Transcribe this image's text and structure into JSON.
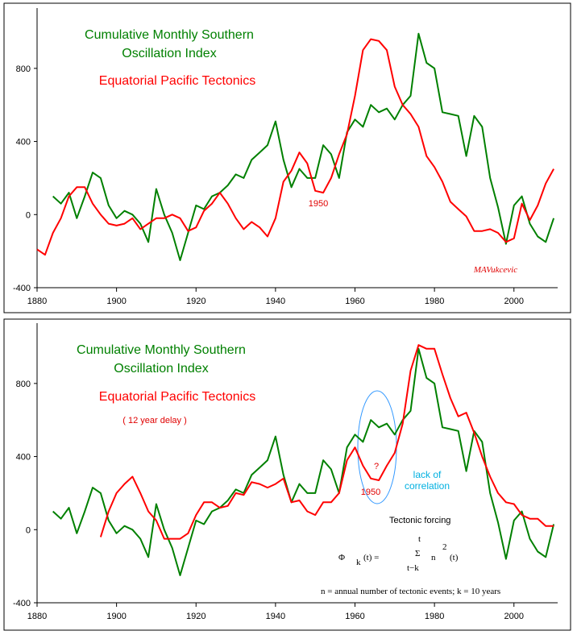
{
  "chart_data": [
    {
      "type": "line",
      "x": [
        1880,
        1882,
        1884,
        1886,
        1888,
        1890,
        1892,
        1894,
        1896,
        1898,
        1900,
        1902,
        1904,
        1906,
        1908,
        1910,
        1912,
        1914,
        1916,
        1918,
        1920,
        1922,
        1924,
        1926,
        1928,
        1930,
        1932,
        1934,
        1936,
        1938,
        1940,
        1942,
        1944,
        1946,
        1948,
        1950,
        1952,
        1954,
        1956,
        1958,
        1960,
        1962,
        1964,
        1966,
        1968,
        1970,
        1972,
        1974,
        1976,
        1978,
        1980,
        1982,
        1984,
        1986,
        1988,
        1990,
        1992,
        1994,
        1996,
        1998,
        2000,
        2002,
        2004,
        2006,
        2008,
        2010
      ],
      "series": [
        {
          "name": "Cumulative Monthly Southern Oscillation Index",
          "color": "#008000",
          "values": [
            null,
            null,
            100,
            60,
            120,
            -20,
            100,
            230,
            200,
            50,
            -20,
            20,
            0,
            -50,
            -150,
            140,
            0,
            -100,
            -250,
            -100,
            50,
            30,
            100,
            120,
            160,
            220,
            200,
            300,
            340,
            380,
            510,
            300,
            150,
            250,
            200,
            200,
            380,
            330,
            200,
            450,
            520,
            480,
            600,
            560,
            580,
            520,
            600,
            650,
            990,
            830,
            800,
            560,
            550,
            540,
            320,
            540,
            480,
            200,
            40,
            -160,
            50,
            100,
            -50,
            -120,
            -150,
            -20
          ]
        },
        {
          "name": "Equatorial Pacific Tectonics",
          "color": "#ff0000",
          "values": [
            -190,
            -220,
            -100,
            -20,
            100,
            150,
            150,
            60,
            0,
            -50,
            -60,
            -50,
            -20,
            -80,
            -50,
            -20,
            -20,
            0,
            -20,
            -90,
            -70,
            20,
            60,
            120,
            60,
            -20,
            -80,
            -40,
            -70,
            -120,
            -20,
            180,
            240,
            340,
            280,
            130,
            120,
            200,
            330,
            440,
            650,
            900,
            960,
            950,
            900,
            700,
            600,
            550,
            480,
            320,
            260,
            180,
            70,
            30,
            -10,
            -90,
            -90,
            -80,
            -100,
            -150,
            -130,
            60,
            -30,
            50,
            170,
            250
          ]
        }
      ],
      "xlim": [
        1880,
        2011
      ],
      "xticks": [
        1880,
        1900,
        1920,
        1940,
        1960,
        1980,
        2000
      ],
      "ylim": [
        -400,
        1130
      ],
      "yticks": [
        -400,
        0,
        400,
        800
      ],
      "annotations": [
        "1950",
        "MAVukcevic"
      ]
    },
    {
      "type": "line",
      "x": [
        1880,
        1882,
        1884,
        1886,
        1888,
        1890,
        1892,
        1894,
        1896,
        1898,
        1900,
        1902,
        1904,
        1906,
        1908,
        1910,
        1912,
        1914,
        1916,
        1918,
        1920,
        1922,
        1924,
        1926,
        1928,
        1930,
        1932,
        1934,
        1936,
        1938,
        1940,
        1942,
        1944,
        1946,
        1948,
        1950,
        1952,
        1954,
        1956,
        1958,
        1960,
        1962,
        1964,
        1966,
        1968,
        1970,
        1972,
        1974,
        1976,
        1978,
        1980,
        1982,
        1984,
        1986,
        1988,
        1990,
        1992,
        1994,
        1996,
        1998,
        2000,
        2002,
        2004,
        2006,
        2008,
        2010
      ],
      "series": [
        {
          "name": "Cumulative Monthly Southern Oscillation Index",
          "color": "#008000",
          "values": [
            null,
            null,
            100,
            60,
            120,
            -20,
            100,
            230,
            200,
            50,
            -20,
            20,
            0,
            -50,
            -150,
            140,
            0,
            -100,
            -250,
            -100,
            50,
            30,
            100,
            120,
            160,
            220,
            200,
            300,
            340,
            380,
            510,
            300,
            150,
            250,
            200,
            200,
            380,
            330,
            200,
            450,
            520,
            480,
            600,
            560,
            580,
            520,
            600,
            650,
            990,
            830,
            800,
            560,
            550,
            540,
            320,
            540,
            480,
            200,
            40,
            -160,
            50,
            100,
            -50,
            -120,
            -150,
            30
          ]
        },
        {
          "name": "Equatorial Pacific Tectonics",
          "color": "#ff0000",
          "values": [
            null,
            null,
            null,
            null,
            null,
            null,
            null,
            null,
            -40,
            100,
            200,
            250,
            290,
            200,
            100,
            50,
            -50,
            -50,
            -50,
            -20,
            80,
            150,
            150,
            120,
            130,
            200,
            190,
            260,
            250,
            230,
            250,
            280,
            150,
            160,
            100,
            80,
            150,
            150,
            200,
            380,
            450,
            350,
            280,
            270,
            350,
            420,
            580,
            870,
            1010,
            990,
            990,
            850,
            720,
            620,
            640,
            530,
            400,
            290,
            200,
            150,
            140,
            80,
            60,
            60,
            20,
            20
          ]
        }
      ],
      "xlim": [
        1880,
        2011
      ],
      "xticks": [
        1880,
        1900,
        1920,
        1940,
        1960,
        1980,
        2000
      ],
      "ylim": [
        -400,
        1130
      ],
      "yticks": [
        -400,
        0,
        400,
        800
      ],
      "subtitle": "( 12 year delay )",
      "annotations": [
        "?",
        "1950",
        "lack of correlation",
        "Tectonic forcing",
        "n = annual number of tectonic events;  k = 10 years"
      ],
      "formula": {
        "phi": "Φ",
        "sub": "k",
        "arg": "(t) =",
        "sum": "Σ",
        "upper": "t",
        "lower": "t−k",
        "term": "n",
        "power": "2",
        "tail": "(t)"
      }
    }
  ]
}
